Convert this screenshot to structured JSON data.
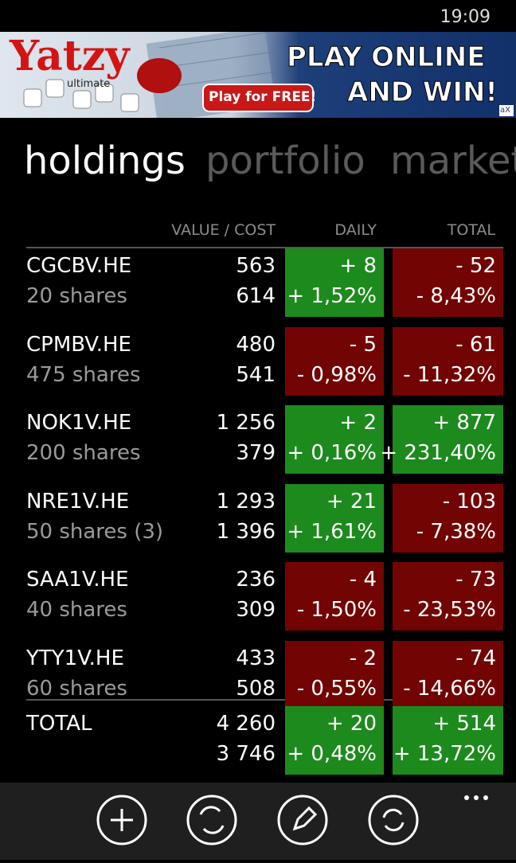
{
  "status": {
    "time": "19:09"
  },
  "ad": {
    "brand": "Yatzy",
    "brand_sub": "ultimate",
    "button": "Play for FREE!",
    "headline": [
      "PLAY ONLINE",
      "AND WIN!"
    ],
    "badge": "aX"
  },
  "tabs": [
    "holdings",
    "portfolio",
    "market"
  ],
  "table": {
    "headers": [
      "VALUE / COST",
      "DAILY",
      "TOTAL"
    ],
    "rows": [
      {
        "symbol": "CGCBV.HE",
        "shares": "20 shares",
        "value": "563",
        "cost": "614",
        "daily_change": "+ 8",
        "daily_percent": "+ 1,52%",
        "total_change": "- 52",
        "total_percent": "- 8,43%",
        "daily_trend": "up",
        "total_trend": "down"
      },
      {
        "symbol": "CPMBV.HE",
        "shares": "475 shares",
        "value": "480",
        "cost": "541",
        "daily_change": "- 5",
        "daily_percent": "- 0,98%",
        "total_change": "- 61",
        "total_percent": "- 11,32%",
        "daily_trend": "down",
        "total_trend": "down"
      },
      {
        "symbol": "NOK1V.HE",
        "shares": "200 shares",
        "value": "1 256",
        "cost": "379",
        "daily_change": "+ 2",
        "daily_percent": "+ 0,16%",
        "total_change": "+ 877",
        "total_percent": "+ 231,40%",
        "daily_trend": "up",
        "total_trend": "up"
      },
      {
        "symbol": "NRE1V.HE",
        "shares": "50 shares (3)",
        "value": "1 293",
        "cost": "1 396",
        "daily_change": "+ 21",
        "daily_percent": "+ 1,61%",
        "total_change": "- 103",
        "total_percent": "- 7,38%",
        "daily_trend": "up",
        "total_trend": "down"
      },
      {
        "symbol": "SAA1V.HE",
        "shares": "40 shares",
        "value": "236",
        "cost": "309",
        "daily_change": "- 4",
        "daily_percent": "- 1,50%",
        "total_change": "- 73",
        "total_percent": "- 23,53%",
        "daily_trend": "down",
        "total_trend": "down"
      },
      {
        "symbol": "YTY1V.HE",
        "shares": "60 shares",
        "value": "433",
        "cost": "508",
        "daily_change": "- 2",
        "daily_percent": "- 0,55%",
        "total_change": "- 74",
        "total_percent": "- 14,66%",
        "daily_trend": "down",
        "total_trend": "down"
      }
    ],
    "total": {
      "label": "TOTAL",
      "value": "4 260",
      "cost": "3 746",
      "daily_change": "+ 20",
      "daily_percent": "+ 0,48%",
      "total_change": "+ 514",
      "total_percent": "+ 13,72%",
      "daily_trend": "up",
      "total_trend": "up"
    }
  },
  "colors": {
    "up": "#1d8a1d",
    "down": "#720404"
  }
}
